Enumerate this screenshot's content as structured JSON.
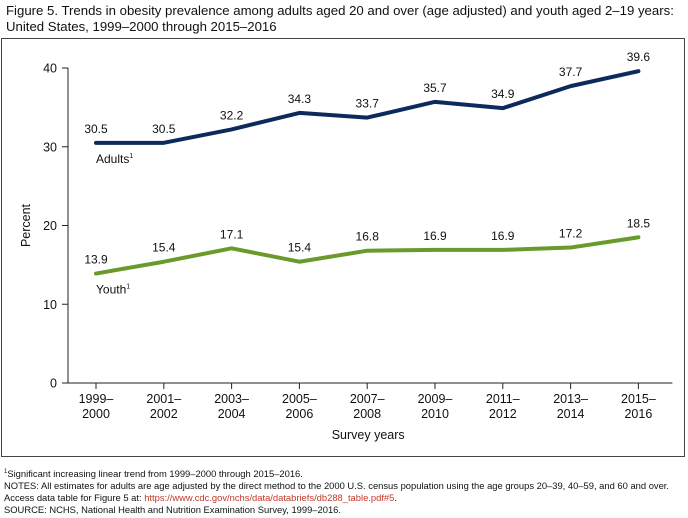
{
  "header": {
    "title_line1": "Figure 5. Trends in obesity prevalence among adults aged 20 and over (age adjusted) and youth aged 2–19 years:",
    "title_line2": "United States, 1999–2000 through 2015–2016"
  },
  "chart_data": {
    "type": "line",
    "title": "",
    "xlabel": "Survey years",
    "ylabel": "Percent",
    "ylim": [
      0,
      40
    ],
    "yticks": [
      0,
      10,
      20,
      30,
      40
    ],
    "grid": false,
    "categories": [
      [
        "1999–",
        "2000"
      ],
      [
        "2001–",
        "2002"
      ],
      [
        "2003–",
        "2004"
      ],
      [
        "2005–",
        "2006"
      ],
      [
        "2007–",
        "2008"
      ],
      [
        "2009–",
        "2010"
      ],
      [
        "2011–",
        "2012"
      ],
      [
        "2013–",
        "2014"
      ],
      [
        "2015–",
        "2016"
      ]
    ],
    "series": [
      {
        "name": "Adults",
        "superscript": "1",
        "color": "#0d2a5c",
        "values": [
          30.5,
          30.5,
          32.2,
          34.3,
          33.7,
          35.7,
          34.9,
          37.7,
          39.6
        ],
        "labels": [
          "30.5",
          "30.5",
          "32.2",
          "34.3",
          "33.7",
          "35.7",
          "34.9",
          "37.7",
          "39.6"
        ]
      },
      {
        "name": "Youth",
        "superscript": "1",
        "color": "#6a9a2c",
        "values": [
          13.9,
          15.4,
          17.1,
          15.4,
          16.8,
          16.9,
          16.9,
          17.2,
          18.5
        ],
        "labels": [
          "13.9",
          "15.4",
          "17.1",
          "15.4",
          "16.8",
          "16.9",
          "16.9",
          "17.2",
          "18.5"
        ]
      }
    ]
  },
  "footnotes": {
    "sig_marker": "1",
    "sig": "Significant increasing linear trend from 1999–2000 through 2015–2016.",
    "notes": "NOTES: All estimates for adults are age adjusted by the direct method to the 2000 U.S. census population using the age groups 20–39, 40–59, and 60 and over.",
    "access_prefix": "Access data table for Figure 5 at: ",
    "access_link": "https://www.cdc.gov/nchs/data/databriefs/db288_table.pdf#5",
    "access_suffix": ".",
    "source": "SOURCE: NCHS, National Health and Nutrition Examination Survey, 1999–2016."
  }
}
